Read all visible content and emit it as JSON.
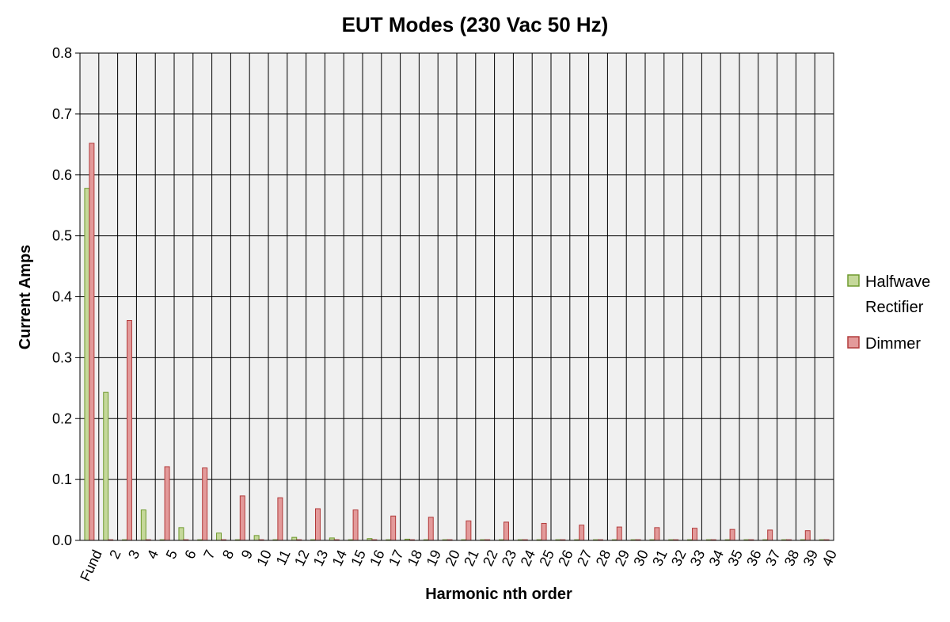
{
  "chart_data": {
    "type": "bar",
    "title": "EUT Modes (230 Vac 50 Hz)",
    "xlabel": "Harmonic nth order",
    "ylabel": "Current Amps",
    "ylim": [
      0,
      0.8
    ],
    "yticks": [
      "0.0",
      "0.1",
      "0.2",
      "0.3",
      "0.4",
      "0.5",
      "0.6",
      "0.7",
      "0.8"
    ],
    "grid": true,
    "legend_position": "right",
    "categories": [
      "Fund",
      "2",
      "3",
      "4",
      "5",
      "6",
      "7",
      "8",
      "9",
      "10",
      "11",
      "12",
      "13",
      "14",
      "15",
      "16",
      "17",
      "18",
      "19",
      "20",
      "21",
      "22",
      "23",
      "24",
      "25",
      "26",
      "27",
      "28",
      "29",
      "30",
      "31",
      "32",
      "33",
      "34",
      "35",
      "36",
      "37",
      "38",
      "39",
      "40"
    ],
    "series": [
      {
        "name": "Halfwave Rectifier",
        "name_lines": [
          "Halfwave",
          "Rectifier"
        ],
        "color": "#c5d89a",
        "stroke": "#6f9a2e",
        "values": [
          0.578,
          0.243,
          0.001,
          0.05,
          0.001,
          0.021,
          0.001,
          0.012,
          0.001,
          0.008,
          0.001,
          0.005,
          0.001,
          0.004,
          0.001,
          0.003,
          0.001,
          0.002,
          0.001,
          0.001,
          0.001,
          0.001,
          0.001,
          0.001,
          0.001,
          0.001,
          0.001,
          0.001,
          0.001,
          0.001,
          0.001,
          0.001,
          0.001,
          0.001,
          0.001,
          0.001,
          0.001,
          0.001,
          0.001,
          0.001
        ]
      },
      {
        "name": "Dimmer",
        "name_lines": [
          "Dimmer"
        ],
        "color": "#e39a9a",
        "stroke": "#b23b3b",
        "values": [
          0.652,
          0.001,
          0.361,
          0.001,
          0.121,
          0.001,
          0.119,
          0.001,
          0.073,
          0.001,
          0.07,
          0.001,
          0.052,
          0.001,
          0.05,
          0.001,
          0.04,
          0.001,
          0.038,
          0.001,
          0.032,
          0.001,
          0.03,
          0.001,
          0.028,
          0.001,
          0.025,
          0.001,
          0.022,
          0.001,
          0.021,
          0.001,
          0.02,
          0.001,
          0.018,
          0.001,
          0.017,
          0.001,
          0.016,
          0.001
        ]
      }
    ]
  }
}
